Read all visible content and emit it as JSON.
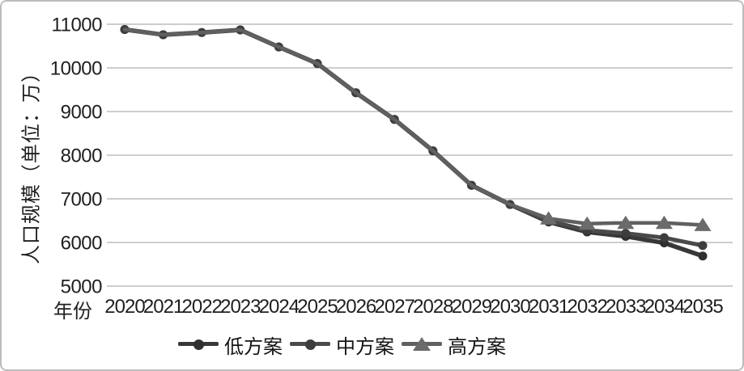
{
  "chart_data": {
    "type": "line",
    "title": "",
    "x_axis_title": "年份",
    "y_axis_title": "人口规模（单位：万）",
    "categories": [
      "2020",
      "2021",
      "2022",
      "2023",
      "2024",
      "2025",
      "2026",
      "2027",
      "2028",
      "2029",
      "2030",
      "2031",
      "2032",
      "2033",
      "2034",
      "2035"
    ],
    "y_ticks": [
      11000,
      10000,
      9000,
      8000,
      7000,
      6000,
      5000
    ],
    "ylim": [
      5000,
      11000
    ],
    "grid": "horizontal",
    "grid_color": "#b0b0b0",
    "legend_position": "bottom",
    "series": [
      {
        "name": "低方案",
        "marker": "circle",
        "color": "#383838",
        "marker_color": "#2f2f2f",
        "line_width": 5.5,
        "marker_start_index": 0,
        "values": [
          10880,
          10760,
          10810,
          10870,
          10480,
          10100,
          9430,
          8820,
          8100,
          7310,
          6870,
          6470,
          6240,
          6140,
          5990,
          5690
        ]
      },
      {
        "name": "中方案",
        "marker": "circle",
        "color": "#4a4a4a",
        "marker_color": "#3d3d3d",
        "line_width": 5,
        "marker_start_index": 0,
        "values": [
          10880,
          10760,
          10810,
          10870,
          10480,
          10100,
          9430,
          8820,
          8100,
          7310,
          6870,
          6500,
          6280,
          6210,
          6110,
          5930
        ]
      },
      {
        "name": "高方案",
        "marker": "triangle",
        "color": "#606060",
        "marker_color": "#6b6b6b",
        "line_width": 4.5,
        "marker_start_index": 11,
        "values": [
          10880,
          10760,
          10810,
          10870,
          10480,
          10100,
          9430,
          8820,
          8100,
          7310,
          6870,
          6550,
          6430,
          6450,
          6450,
          6400
        ]
      }
    ]
  }
}
